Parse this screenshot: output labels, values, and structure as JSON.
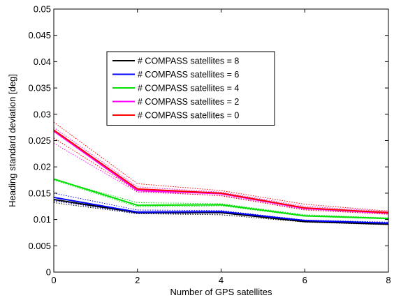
{
  "chart_data": {
    "type": "line",
    "title": "",
    "xlabel": "Number of GPS satellites",
    "ylabel": "Heading standard deviation [deg]",
    "xlim": [
      0,
      8
    ],
    "ylim": [
      0,
      0.05
    ],
    "xticks": [
      0,
      2,
      4,
      6,
      8
    ],
    "xtick_labels": [
      "0",
      "2",
      "4",
      "6",
      "8"
    ],
    "yticks": [
      0,
      0.005,
      0.01,
      0.015,
      0.02,
      0.025,
      0.03,
      0.035,
      0.04,
      0.045,
      0.05
    ],
    "ytick_labels": [
      "0",
      "0.005",
      "0.01",
      "0.015",
      "0.02",
      "0.025",
      "0.03",
      "0.035",
      "0.04",
      "0.045",
      "0.05"
    ],
    "grid": false,
    "legend_position": "upper-middle",
    "x": [
      0,
      2,
      4,
      6,
      8
    ],
    "series": [
      {
        "name": "# COMPASS satellites = 8",
        "color": "#000000",
        "values": [
          0.0138,
          0.0113,
          0.0113,
          0.0096,
          0.0091
        ],
        "dotted_upper": [
          0.0135,
          0.0115,
          0.0113,
          0.0098,
          0.0093
        ],
        "dotted_lower": [
          0.0132,
          0.0111,
          0.0109,
          0.0095,
          0.009
        ]
      },
      {
        "name": "# COMPASS satellites = 6",
        "color": "#0000ff",
        "values": [
          0.0142,
          0.0114,
          0.0115,
          0.0098,
          0.0093
        ],
        "dotted_upper": [
          0.015,
          0.0118,
          0.0117,
          0.0099,
          0.0095
        ],
        "dotted_lower": [
          0.0136,
          0.0111,
          0.0112,
          0.0097,
          0.0092
        ]
      },
      {
        "name": "# COMPASS satellites = 4",
        "color": "#00e000",
        "values": [
          0.0177,
          0.0127,
          0.0128,
          0.0107,
          0.0102
        ],
        "dotted_upper": [
          0.0176,
          0.0132,
          0.013,
          0.0109,
          0.0103
        ],
        "dotted_lower": [
          0.0175,
          0.0124,
          0.0126,
          0.0106,
          0.0101
        ]
      },
      {
        "name": "# COMPASS satellites = 2",
        "color": "#ff00ff",
        "values": [
          0.0268,
          0.0155,
          0.0149,
          0.0121,
          0.0112
        ],
        "dotted_upper": [
          0.0275,
          0.0162,
          0.0152,
          0.0125,
          0.0115
        ],
        "dotted_lower": [
          0.0245,
          0.0152,
          0.0146,
          0.0119,
          0.011
        ]
      },
      {
        "name": "# COMPASS satellites = 0",
        "color": "#ff0000",
        "values": [
          0.027,
          0.0158,
          0.015,
          0.0122,
          0.0113
        ],
        "dotted_upper": [
          0.0285,
          0.0168,
          0.0155,
          0.0129,
          0.0116
        ],
        "dotted_lower": [
          0.0255,
          0.0154,
          0.0145,
          0.0118,
          0.011
        ]
      }
    ]
  }
}
